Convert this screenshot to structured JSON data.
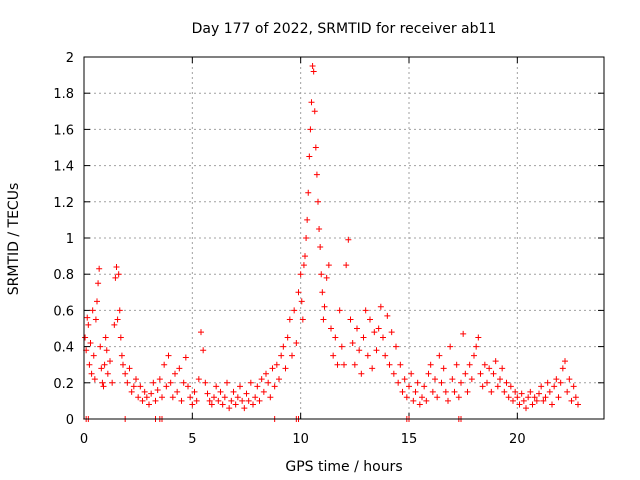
{
  "chart_data": {
    "type": "scatter",
    "title": "Day 177 of 2022, SRMTID for receiver ab11",
    "xlabel": "GPS time / hours",
    "ylabel": "SRMTID / TECUs",
    "xlim": [
      0,
      24
    ],
    "ylim": [
      0,
      2
    ],
    "xticks": [
      0,
      5,
      10,
      15,
      20
    ],
    "xtick_labels": [
      "0",
      "5",
      "10",
      "15",
      "20"
    ],
    "yticks": [
      0,
      0.2,
      0.4,
      0.6,
      0.8,
      1,
      1.2,
      1.4,
      1.6,
      1.8,
      2
    ],
    "ytick_labels": [
      "0",
      "0.2",
      "0.4",
      "0.6",
      "0.8",
      "1",
      "1.2",
      "1.4",
      "1.6",
      "1.8",
      "2"
    ],
    "grid": true,
    "marker": "plus",
    "color": "#ff0000",
    "series": [
      {
        "name": "SRMTID",
        "points": [
          [
            0.05,
            0.45
          ],
          [
            0.1,
            0.38
          ],
          [
            0.15,
            0.56
          ],
          [
            0.2,
            0.52
          ],
          [
            0.25,
            0.3
          ],
          [
            0.3,
            0.42
          ],
          [
            0.35,
            0.25
          ],
          [
            0.4,
            0.6
          ],
          [
            0.45,
            0.35
          ],
          [
            0.5,
            0.22
          ],
          [
            0.55,
            0.55
          ],
          [
            0.6,
            0.65
          ],
          [
            0.65,
            0.75
          ],
          [
            0.7,
            0.83
          ],
          [
            0.75,
            0.4
          ],
          [
            0.8,
            0.28
          ],
          [
            0.85,
            0.2
          ],
          [
            0.9,
            0.18
          ],
          [
            0.95,
            0.3
          ],
          [
            1.0,
            0.45
          ],
          [
            1.05,
            0.38
          ],
          [
            1.1,
            0.25
          ],
          [
            1.2,
            0.32
          ],
          [
            1.3,
            0.2
          ],
          [
            1.4,
            0.52
          ],
          [
            1.45,
            0.78
          ],
          [
            1.5,
            0.84
          ],
          [
            1.55,
            0.55
          ],
          [
            1.6,
            0.8
          ],
          [
            1.65,
            0.6
          ],
          [
            1.7,
            0.45
          ],
          [
            1.75,
            0.35
          ],
          [
            1.8,
            0.3
          ],
          [
            1.9,
            0.25
          ],
          [
            2.0,
            0.2
          ],
          [
            2.1,
            0.28
          ],
          [
            2.2,
            0.15
          ],
          [
            2.3,
            0.18
          ],
          [
            2.4,
            0.22
          ],
          [
            2.5,
            0.12
          ],
          [
            2.6,
            0.18
          ],
          [
            2.7,
            0.1
          ],
          [
            2.8,
            0.15
          ],
          [
            2.9,
            0.12
          ],
          [
            3.0,
            0.08
          ],
          [
            3.1,
            0.14
          ],
          [
            3.2,
            0.2
          ],
          [
            3.3,
            0.1
          ],
          [
            3.4,
            0.16
          ],
          [
            3.5,
            0.22
          ],
          [
            3.6,
            0.12
          ],
          [
            3.7,
            0.3
          ],
          [
            3.8,
            0.18
          ],
          [
            3.9,
            0.35
          ],
          [
            4.0,
            0.2
          ],
          [
            4.1,
            0.12
          ],
          [
            4.2,
            0.25
          ],
          [
            4.3,
            0.15
          ],
          [
            4.4,
            0.28
          ],
          [
            4.5,
            0.1
          ],
          [
            4.6,
            0.2
          ],
          [
            4.7,
            0.34
          ],
          [
            4.8,
            0.18
          ],
          [
            4.9,
            0.12
          ],
          [
            5.0,
            0.08
          ],
          [
            5.1,
            0.15
          ],
          [
            5.2,
            0.1
          ],
          [
            5.3,
            0.22
          ],
          [
            5.4,
            0.48
          ],
          [
            5.5,
            0.38
          ],
          [
            5.6,
            0.2
          ],
          [
            5.7,
            0.14
          ],
          [
            5.8,
            0.1
          ],
          [
            5.9,
            0.08
          ],
          [
            6.0,
            0.12
          ],
          [
            6.1,
            0.18
          ],
          [
            6.2,
            0.1
          ],
          [
            6.3,
            0.15
          ],
          [
            6.4,
            0.08
          ],
          [
            6.5,
            0.12
          ],
          [
            6.6,
            0.2
          ],
          [
            6.7,
            0.06
          ],
          [
            6.8,
            0.1
          ],
          [
            6.9,
            0.15
          ],
          [
            7.0,
            0.08
          ],
          [
            7.1,
            0.12
          ],
          [
            7.2,
            0.18
          ],
          [
            7.3,
            0.1
          ],
          [
            7.4,
            0.06
          ],
          [
            7.5,
            0.14
          ],
          [
            7.6,
            0.1
          ],
          [
            7.7,
            0.2
          ],
          [
            7.8,
            0.08
          ],
          [
            7.9,
            0.12
          ],
          [
            8.0,
            0.18
          ],
          [
            8.1,
            0.1
          ],
          [
            8.2,
            0.22
          ],
          [
            8.3,
            0.15
          ],
          [
            8.4,
            0.25
          ],
          [
            8.5,
            0.2
          ],
          [
            8.6,
            0.12
          ],
          [
            8.7,
            0.28
          ],
          [
            8.8,
            0.18
          ],
          [
            8.9,
            0.3
          ],
          [
            9.0,
            0.22
          ],
          [
            9.1,
            0.35
          ],
          [
            9.2,
            0.4
          ],
          [
            9.3,
            0.28
          ],
          [
            9.4,
            0.45
          ],
          [
            9.5,
            0.55
          ],
          [
            9.6,
            0.35
          ],
          [
            9.7,
            0.6
          ],
          [
            9.8,
            0.42
          ],
          [
            9.9,
            0.7
          ],
          [
            10.0,
            0.8
          ],
          [
            10.05,
            0.65
          ],
          [
            10.1,
            0.55
          ],
          [
            10.15,
            0.85
          ],
          [
            10.2,
            0.9
          ],
          [
            10.25,
            1.0
          ],
          [
            10.3,
            1.1
          ],
          [
            10.35,
            1.25
          ],
          [
            10.4,
            1.45
          ],
          [
            10.45,
            1.6
          ],
          [
            10.5,
            1.75
          ],
          [
            10.55,
            1.95
          ],
          [
            10.6,
            1.92
          ],
          [
            10.65,
            1.7
          ],
          [
            10.7,
            1.5
          ],
          [
            10.75,
            1.35
          ],
          [
            10.8,
            1.2
          ],
          [
            10.85,
            1.05
          ],
          [
            10.9,
            0.95
          ],
          [
            10.95,
            0.8
          ],
          [
            11.0,
            0.7
          ],
          [
            11.05,
            0.55
          ],
          [
            11.1,
            0.62
          ],
          [
            11.2,
            0.78
          ],
          [
            11.3,
            0.85
          ],
          [
            11.4,
            0.5
          ],
          [
            11.5,
            0.35
          ],
          [
            11.6,
            0.45
          ],
          [
            11.7,
            0.3
          ],
          [
            11.8,
            0.6
          ],
          [
            11.9,
            0.4
          ],
          [
            12.0,
            0.3
          ],
          [
            12.1,
            0.85
          ],
          [
            12.2,
            0.99
          ],
          [
            12.3,
            0.55
          ],
          [
            12.4,
            0.42
          ],
          [
            12.5,
            0.3
          ],
          [
            12.6,
            0.5
          ],
          [
            12.7,
            0.38
          ],
          [
            12.8,
            0.25
          ],
          [
            12.9,
            0.45
          ],
          [
            13.0,
            0.6
          ],
          [
            13.1,
            0.35
          ],
          [
            13.2,
            0.55
          ],
          [
            13.3,
            0.28
          ],
          [
            13.4,
            0.48
          ],
          [
            13.5,
            0.38
          ],
          [
            13.6,
            0.5
          ],
          [
            13.7,
            0.62
          ],
          [
            13.8,
            0.45
          ],
          [
            13.9,
            0.35
          ],
          [
            14.0,
            0.57
          ],
          [
            14.1,
            0.3
          ],
          [
            14.2,
            0.48
          ],
          [
            14.3,
            0.25
          ],
          [
            14.4,
            0.4
          ],
          [
            14.5,
            0.2
          ],
          [
            14.6,
            0.3
          ],
          [
            14.7,
            0.15
          ],
          [
            14.8,
            0.22
          ],
          [
            14.9,
            0.12
          ],
          [
            15.0,
            0.18
          ],
          [
            15.1,
            0.25
          ],
          [
            15.2,
            0.1
          ],
          [
            15.3,
            0.15
          ],
          [
            15.4,
            0.2
          ],
          [
            15.5,
            0.08
          ],
          [
            15.6,
            0.12
          ],
          [
            15.7,
            0.18
          ],
          [
            15.8,
            0.1
          ],
          [
            15.9,
            0.25
          ],
          [
            16.0,
            0.3
          ],
          [
            16.1,
            0.15
          ],
          [
            16.2,
            0.22
          ],
          [
            16.3,
            0.12
          ],
          [
            16.4,
            0.35
          ],
          [
            16.5,
            0.2
          ],
          [
            16.6,
            0.28
          ],
          [
            16.7,
            0.15
          ],
          [
            16.8,
            0.1
          ],
          [
            16.9,
            0.4
          ],
          [
            17.0,
            0.22
          ],
          [
            17.1,
            0.15
          ],
          [
            17.2,
            0.3
          ],
          [
            17.3,
            0.12
          ],
          [
            17.4,
            0.2
          ],
          [
            17.5,
            0.47
          ],
          [
            17.6,
            0.25
          ],
          [
            17.7,
            0.15
          ],
          [
            17.8,
            0.3
          ],
          [
            17.9,
            0.22
          ],
          [
            18.0,
            0.35
          ],
          [
            18.1,
            0.4
          ],
          [
            18.2,
            0.45
          ],
          [
            18.3,
            0.25
          ],
          [
            18.4,
            0.18
          ],
          [
            18.5,
            0.3
          ],
          [
            18.6,
            0.2
          ],
          [
            18.7,
            0.28
          ],
          [
            18.8,
            0.15
          ],
          [
            18.9,
            0.25
          ],
          [
            19.0,
            0.32
          ],
          [
            19.1,
            0.18
          ],
          [
            19.2,
            0.22
          ],
          [
            19.3,
            0.28
          ],
          [
            19.4,
            0.15
          ],
          [
            19.5,
            0.2
          ],
          [
            19.6,
            0.12
          ],
          [
            19.7,
            0.18
          ],
          [
            19.8,
            0.1
          ],
          [
            19.9,
            0.15
          ],
          [
            20.0,
            0.12
          ],
          [
            20.1,
            0.08
          ],
          [
            20.2,
            0.14
          ],
          [
            20.3,
            0.1
          ],
          [
            20.4,
            0.06
          ],
          [
            20.5,
            0.12
          ],
          [
            20.6,
            0.15
          ],
          [
            20.7,
            0.08
          ],
          [
            20.8,
            0.12
          ],
          [
            20.9,
            0.1
          ],
          [
            21.0,
            0.14
          ],
          [
            21.1,
            0.18
          ],
          [
            21.2,
            0.1
          ],
          [
            21.3,
            0.12
          ],
          [
            21.4,
            0.2
          ],
          [
            21.5,
            0.15
          ],
          [
            21.6,
            0.08
          ],
          [
            21.7,
            0.18
          ],
          [
            21.8,
            0.22
          ],
          [
            21.9,
            0.12
          ],
          [
            22.0,
            0.2
          ],
          [
            22.1,
            0.28
          ],
          [
            22.2,
            0.32
          ],
          [
            22.3,
            0.15
          ],
          [
            22.4,
            0.22
          ],
          [
            22.5,
            0.1
          ],
          [
            22.6,
            0.18
          ],
          [
            22.7,
            0.12
          ],
          [
            22.8,
            0.08
          ]
        ],
        "zero_points": [
          0.1,
          0.2,
          1.9,
          3.3,
          3.5,
          3.6,
          8.8,
          9.8,
          9.9,
          14.9,
          15.0,
          17.3,
          17.4
        ]
      }
    ]
  }
}
